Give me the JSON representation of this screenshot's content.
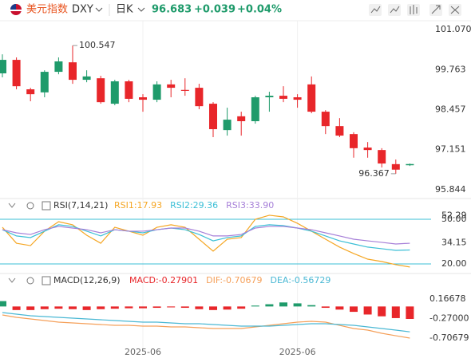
{
  "header": {
    "name": "美元指数",
    "symbol": "DXY",
    "period": "日K",
    "price": "96.683",
    "change": "+0.039",
    "change_pct": "+0.04%"
  },
  "chart_data": [
    {
      "type": "candlestick",
      "categories": [
        null,
        null,
        null,
        null,
        null,
        null,
        null,
        null,
        null,
        null,
        "2025-06",
        null,
        null,
        null,
        null,
        null,
        null,
        null,
        null,
        null,
        null,
        "2025-06",
        null,
        null,
        null,
        null,
        null,
        null,
        null,
        null
      ],
      "open": [
        99.64,
        100.08,
        99.12,
        99.02,
        99.69,
        100.0,
        99.43,
        99.48,
        98.65,
        99.38,
        98.86,
        98.78,
        99.28,
        99.1,
        99.17,
        98.65,
        97.79,
        98.24,
        98.08,
        98.86,
        98.91,
        98.86,
        99.28,
        98.39,
        97.92,
        97.66,
        97.22,
        97.14,
        96.68,
        96.644
      ],
      "high": [
        100.26,
        100.16,
        99.17,
        99.74,
        100.16,
        100.547,
        99.74,
        99.56,
        99.43,
        99.43,
        98.96,
        99.38,
        99.43,
        99.48,
        99.3,
        98.7,
        98.52,
        98.39,
        98.91,
        99.04,
        99.22,
        98.96,
        99.54,
        98.44,
        98.18,
        97.72,
        97.4,
        97.2,
        96.83,
        96.7
      ],
      "low": [
        99.51,
        99.12,
        98.73,
        98.86,
        99.61,
        99.3,
        99.35,
        98.65,
        98.6,
        98.7,
        98.39,
        98.7,
        98.86,
        98.91,
        98.47,
        97.56,
        97.61,
        97.61,
        98.0,
        98.39,
        98.7,
        98.52,
        98.34,
        97.66,
        97.56,
        96.89,
        96.89,
        96.57,
        96.367,
        96.62
      ],
      "close": [
        100.08,
        99.22,
        98.96,
        99.69,
        100.03,
        99.43,
        99.54,
        98.7,
        99.38,
        98.81,
        98.78,
        99.28,
        99.17,
        99.07,
        98.57,
        97.82,
        98.13,
        98.08,
        98.86,
        98.91,
        98.81,
        98.78,
        98.39,
        97.92,
        97.61,
        97.2,
        97.14,
        96.7,
        96.5,
        96.683
      ],
      "up_color": "#1f9b6b",
      "down_color": "#e8262a",
      "ylim": [
        95.662,
        101.304
      ],
      "yticks": [
        {
          "value": 101.07,
          "label": "101.070"
        },
        99.763,
        98.457,
        97.151,
        95.844
      ],
      "annotations": [
        {
          "text": "100.547",
          "value": 100.547,
          "index": 5
        },
        {
          "text": "96.367",
          "value": 96.367,
          "index": 28
        }
      ]
    },
    {
      "type": "line",
      "title": "RSI(7,14,21)",
      "series": [
        {
          "name": "RSI1:17.93",
          "color": "#f5a623",
          "values": [
            44.6,
            33.9,
            32.3,
            42.0,
            48.4,
            46.3,
            39.3,
            33.9,
            44.6,
            42.0,
            39.3,
            44.6,
            46.3,
            44.6,
            36.6,
            28.6,
            36.6,
            37.7,
            50.0,
            52.7,
            51.6,
            47.3,
            42.0,
            36.6,
            31.3,
            27.0,
            23.2,
            21.6,
            19.5,
            17.93
          ]
        },
        {
          "name": "RSI2:29.36",
          "color": "#3bbfd6",
          "values": [
            43.0,
            38.8,
            37.7,
            42.0,
            46.3,
            45.2,
            42.0,
            38.8,
            43.0,
            42.0,
            40.9,
            43.0,
            44.1,
            43.0,
            39.8,
            35.5,
            37.7,
            38.8,
            45.2,
            46.3,
            45.7,
            44.1,
            42.0,
            38.8,
            35.5,
            33.4,
            31.3,
            30.2,
            29.1,
            29.36
          ]
        },
        {
          "name": "RSI3:33.90",
          "color": "#a67fd8",
          "values": [
            43.0,
            40.9,
            39.8,
            43.0,
            45.2,
            44.1,
            43.0,
            40.9,
            43.0,
            42.0,
            42.0,
            43.0,
            44.1,
            44.1,
            42.0,
            38.8,
            38.8,
            39.8,
            44.1,
            45.2,
            45.2,
            44.1,
            43.0,
            40.9,
            38.8,
            36.6,
            35.5,
            34.5,
            33.4,
            33.9
          ]
        }
      ],
      "ylim": [
        15.18,
        53.75
      ],
      "levels": [
        {
          "value": 50,
          "label": "50.00"
        },
        {
          "value": 20,
          "label": "20.00"
        }
      ],
      "yticks": [
        52.29,
        34.15
      ]
    },
    {
      "type": "macd",
      "title": "MACD(12,26,9)",
      "histogram": {
        "name": "MACD:-0.27901",
        "color": "#e8262a",
        "up_color": "#1f9b6b",
        "down_color": "#e8262a",
        "values": [
          0.12,
          -0.08,
          -0.08,
          -0.06,
          -0.05,
          -0.06,
          -0.08,
          -0.06,
          -0.05,
          -0.04,
          -0.04,
          -0.03,
          -0.02,
          -0.03,
          -0.06,
          -0.08,
          -0.07,
          -0.05,
          0.02,
          0.05,
          0.09,
          0.07,
          0.03,
          -0.03,
          -0.07,
          -0.12,
          -0.18,
          -0.22,
          -0.26,
          -0.27901
        ]
      },
      "series": [
        {
          "name": "DIF:-0.70679",
          "color": "#f5a05a",
          "values": [
            -0.19,
            -0.243,
            -0.279,
            -0.315,
            -0.35,
            -0.368,
            -0.386,
            -0.404,
            -0.422,
            -0.422,
            -0.44,
            -0.44,
            -0.457,
            -0.457,
            -0.475,
            -0.493,
            -0.493,
            -0.493,
            -0.457,
            -0.422,
            -0.386,
            -0.35,
            -0.332,
            -0.35,
            -0.422,
            -0.493,
            -0.529,
            -0.6,
            -0.654,
            -0.70679
          ]
        },
        {
          "name": "DEA:-0.56729",
          "color": "#4ab8d4",
          "values": [
            -0.136,
            -0.172,
            -0.208,
            -0.225,
            -0.243,
            -0.261,
            -0.279,
            -0.297,
            -0.315,
            -0.332,
            -0.35,
            -0.35,
            -0.368,
            -0.386,
            -0.386,
            -0.404,
            -0.422,
            -0.44,
            -0.44,
            -0.44,
            -0.422,
            -0.404,
            -0.386,
            -0.386,
            -0.404,
            -0.422,
            -0.457,
            -0.493,
            -0.529,
            -0.56729
          ]
        }
      ],
      "ylim": [
        -0.9029,
        0.3986
      ],
      "yticks": [
        0.16678,
        {
          "value": -0.27,
          "label": "-0.27000"
        },
        -0.70679
      ]
    }
  ]
}
